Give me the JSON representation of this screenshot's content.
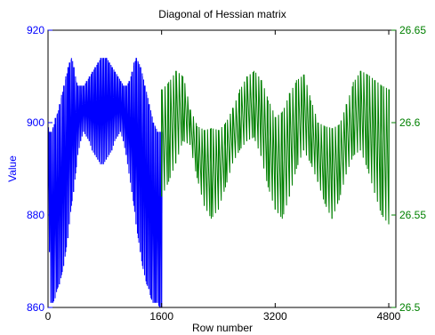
{
  "chart_data": {
    "type": "line",
    "title": "Diagonal of Hessian matrix",
    "xlabel": "Row number",
    "ylabel": "Value",
    "xlim": [
      0,
      4900
    ],
    "xticks": [
      0,
      1600,
      3200,
      4800
    ],
    "left_axis": {
      "ylim": [
        860,
        920
      ],
      "ticks": [
        860,
        880,
        900,
        920
      ],
      "color": "#0000ff"
    },
    "right_axis": {
      "ylim": [
        26.5,
        26.65
      ],
      "ticks": [
        26.5,
        26.55,
        26.6,
        26.65
      ],
      "color": "#008000"
    },
    "grid": false,
    "legend": "none",
    "series": [
      {
        "axis": "left",
        "color": "#0000ff",
        "x_range": [
          0,
          1600
        ],
        "spikes": [
          {
            "x": 0,
            "low": 885,
            "high": 899
          },
          {
            "x": 20,
            "low": 872,
            "high": 898
          },
          {
            "x": 40,
            "low": 861,
            "high": 898
          },
          {
            "x": 70,
            "low": 861,
            "high": 899
          },
          {
            "x": 100,
            "low": 862,
            "high": 901
          },
          {
            "x": 130,
            "low": 864,
            "high": 902
          },
          {
            "x": 160,
            "low": 865,
            "high": 904
          },
          {
            "x": 190,
            "low": 867,
            "high": 906
          },
          {
            "x": 220,
            "low": 869,
            "high": 908
          },
          {
            "x": 250,
            "low": 872,
            "high": 910
          },
          {
            "x": 280,
            "low": 875,
            "high": 912
          },
          {
            "x": 300,
            "low": 878,
            "high": 913
          },
          {
            "x": 330,
            "low": 882,
            "high": 914
          },
          {
            "x": 360,
            "low": 885,
            "high": 912
          },
          {
            "x": 390,
            "low": 889,
            "high": 909
          },
          {
            "x": 420,
            "low": 893,
            "high": 908
          },
          {
            "x": 460,
            "low": 896,
            "high": 908
          },
          {
            "x": 500,
            "low": 898,
            "high": 908
          },
          {
            "x": 540,
            "low": 897,
            "high": 909
          },
          {
            "x": 580,
            "low": 896,
            "high": 910
          },
          {
            "x": 620,
            "low": 894,
            "high": 911
          },
          {
            "x": 660,
            "low": 893,
            "high": 912
          },
          {
            "x": 700,
            "low": 892,
            "high": 913
          },
          {
            "x": 740,
            "low": 891,
            "high": 914
          },
          {
            "x": 780,
            "low": 891,
            "high": 914
          },
          {
            "x": 820,
            "low": 892,
            "high": 914
          },
          {
            "x": 860,
            "low": 893,
            "high": 913
          },
          {
            "x": 900,
            "low": 894,
            "high": 912
          },
          {
            "x": 940,
            "low": 896,
            "high": 911
          },
          {
            "x": 980,
            "low": 897,
            "high": 910
          },
          {
            "x": 1020,
            "low": 898,
            "high": 909
          },
          {
            "x": 1060,
            "low": 896,
            "high": 908
          },
          {
            "x": 1100,
            "low": 893,
            "high": 908
          },
          {
            "x": 1140,
            "low": 889,
            "high": 909
          },
          {
            "x": 1180,
            "low": 885,
            "high": 911
          },
          {
            "x": 1210,
            "low": 882,
            "high": 913
          },
          {
            "x": 1240,
            "low": 878,
            "high": 914
          },
          {
            "x": 1270,
            "low": 875,
            "high": 913
          },
          {
            "x": 1300,
            "low": 872,
            "high": 912
          },
          {
            "x": 1330,
            "low": 869,
            "high": 910
          },
          {
            "x": 1360,
            "low": 867,
            "high": 908
          },
          {
            "x": 1390,
            "low": 865,
            "high": 906
          },
          {
            "x": 1420,
            "low": 864,
            "high": 904
          },
          {
            "x": 1450,
            "low": 862,
            "high": 902
          },
          {
            "x": 1480,
            "low": 861,
            "high": 900
          },
          {
            "x": 1510,
            "low": 861,
            "high": 899
          },
          {
            "x": 1540,
            "low": 861,
            "high": 898
          },
          {
            "x": 1570,
            "low": 860,
            "high": 898
          },
          {
            "x": 1600,
            "low": 860,
            "high": 898
          }
        ]
      },
      {
        "axis": "right",
        "color": "#008000",
        "x_range": [
          1600,
          4800
        ],
        "spikes": [
          {
            "x": 1600,
            "low": 26.56,
            "high": 26.618
          },
          {
            "x": 1700,
            "low": 26.568,
            "high": 26.622
          },
          {
            "x": 1800,
            "low": 26.578,
            "high": 26.628
          },
          {
            "x": 1900,
            "low": 26.59,
            "high": 26.625
          },
          {
            "x": 2000,
            "low": 26.588,
            "high": 26.607
          },
          {
            "x": 2100,
            "low": 26.57,
            "high": 26.598
          },
          {
            "x": 2200,
            "low": 26.555,
            "high": 26.596
          },
          {
            "x": 2300,
            "low": 26.548,
            "high": 26.597
          },
          {
            "x": 2400,
            "low": 26.553,
            "high": 26.596
          },
          {
            "x": 2500,
            "low": 26.565,
            "high": 26.6
          },
          {
            "x": 2600,
            "low": 26.578,
            "high": 26.608
          },
          {
            "x": 2700,
            "low": 26.585,
            "high": 26.618
          },
          {
            "x": 2800,
            "low": 26.59,
            "high": 26.625
          },
          {
            "x": 2900,
            "low": 26.592,
            "high": 26.628
          },
          {
            "x": 3000,
            "low": 26.582,
            "high": 26.623
          },
          {
            "x": 3100,
            "low": 26.565,
            "high": 26.612
          },
          {
            "x": 3200,
            "low": 26.553,
            "high": 26.603
          },
          {
            "x": 3300,
            "low": 26.548,
            "high": 26.606
          },
          {
            "x": 3400,
            "low": 26.56,
            "high": 26.616
          },
          {
            "x": 3500,
            "low": 26.575,
            "high": 26.623
          },
          {
            "x": 3600,
            "low": 26.585,
            "high": 26.626
          },
          {
            "x": 3700,
            "low": 26.578,
            "high": 26.612
          },
          {
            "x": 3800,
            "low": 26.568,
            "high": 26.6
          },
          {
            "x": 3900,
            "low": 26.556,
            "high": 26.598
          },
          {
            "x": 4000,
            "low": 26.548,
            "high": 26.597
          },
          {
            "x": 4100,
            "low": 26.558,
            "high": 26.599
          },
          {
            "x": 4200,
            "low": 26.572,
            "high": 26.61
          },
          {
            "x": 4300,
            "low": 26.582,
            "high": 26.622
          },
          {
            "x": 4400,
            "low": 26.585,
            "high": 26.628
          },
          {
            "x": 4500,
            "low": 26.575,
            "high": 26.626
          },
          {
            "x": 4600,
            "low": 26.562,
            "high": 26.623
          },
          {
            "x": 4700,
            "low": 26.55,
            "high": 26.62
          },
          {
            "x": 4800,
            "low": 26.545,
            "high": 26.618
          }
        ]
      }
    ]
  }
}
